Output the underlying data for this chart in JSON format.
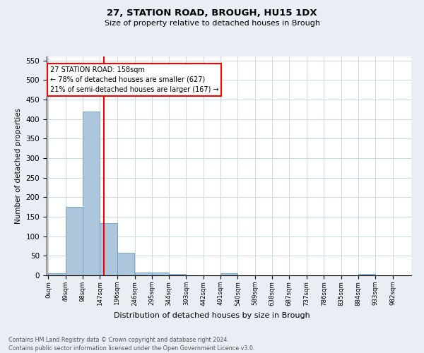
{
  "title": "27, STATION ROAD, BROUGH, HU15 1DX",
  "subtitle": "Size of property relative to detached houses in Brough",
  "xlabel": "Distribution of detached houses by size in Brough",
  "ylabel": "Number of detached properties",
  "bar_edges": [
    0,
    49,
    98,
    147,
    196,
    246,
    295,
    344,
    393,
    442,
    491,
    540,
    589,
    638,
    687,
    737,
    786,
    835,
    884,
    933,
    982
  ],
  "bar_values": [
    5,
    175,
    420,
    133,
    58,
    8,
    8,
    3,
    0,
    0,
    5,
    0,
    0,
    0,
    0,
    0,
    0,
    0,
    3,
    0
  ],
  "bar_color": "#aec6dc",
  "bar_edgecolor": "#6a9fc0",
  "property_line_x": 158,
  "property_line_color": "red",
  "annotation_text": "27 STATION ROAD: 158sqm\n← 78% of detached houses are smaller (627)\n21% of semi-detached houses are larger (167) →",
  "annotation_box_color": "white",
  "annotation_box_edgecolor": "red",
  "ylim": [
    0,
    560
  ],
  "yticks": [
    0,
    50,
    100,
    150,
    200,
    250,
    300,
    350,
    400,
    450,
    500,
    550
  ],
  "tick_labels": [
    "0sqm",
    "49sqm",
    "98sqm",
    "147sqm",
    "196sqm",
    "246sqm",
    "295sqm",
    "344sqm",
    "393sqm",
    "442sqm",
    "491sqm",
    "540sqm",
    "589sqm",
    "638sqm",
    "687sqm",
    "737sqm",
    "786sqm",
    "835sqm",
    "884sqm",
    "933sqm",
    "982sqm"
  ],
  "footer_line1": "Contains HM Land Registry data © Crown copyright and database right 2024.",
  "footer_line2": "Contains public sector information licensed under the Open Government Licence v3.0.",
  "background_color": "#e8eef4",
  "plot_background_color": "#ffffff",
  "grid_color": "#c8d8e8"
}
